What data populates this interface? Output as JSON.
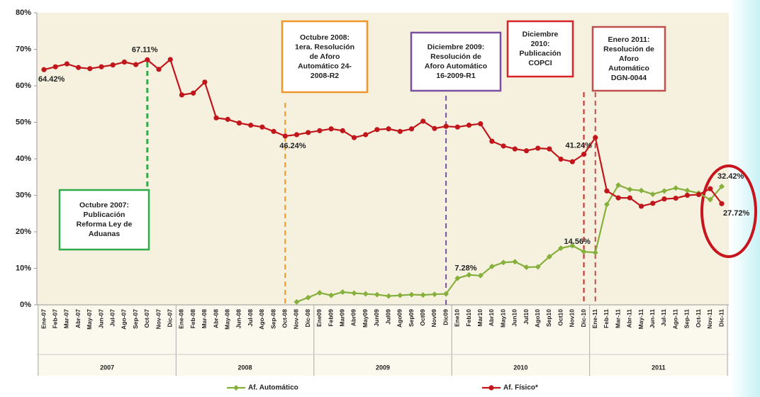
{
  "chart_data": {
    "type": "line",
    "categories": [
      "Ene-07",
      "Feb-07",
      "Mar-07",
      "Abr-07",
      "May-07",
      "Jun-07",
      "Jul-07",
      "Ago-07",
      "Sep-07",
      "Oct-07",
      "Nov-07",
      "Dic-07",
      "Ene-08",
      "Feb-08",
      "Mar-08",
      "Abr-08",
      "May-08",
      "Jun-08",
      "Jul-08",
      "Ago-08",
      "Sep-08",
      "Oct-08",
      "Nov-08",
      "Dic-08",
      "Ene09",
      "Feb09",
      "Mar09",
      "Abr09",
      "May09",
      "Jun09",
      "Jul09",
      "Ago09",
      "Sep09",
      "Oct09",
      "Nov09",
      "Dic09",
      "Ene10",
      "Feb10",
      "Mar10",
      "Abr10",
      "May10",
      "Jun10",
      "Jul10",
      "Ago10",
      "Sep10",
      "Oct10",
      "Nov10",
      "Dic-10",
      "Ene-11",
      "Feb-11",
      "Mar-11",
      "Abr-11",
      "May-11",
      "Jun-11",
      "Jul-11",
      "Ago-11",
      "Sep-11",
      "Oct-11",
      "Nov-11",
      "Dic-11"
    ],
    "groups": [
      "2007",
      "2008",
      "2009",
      "2010",
      "2011"
    ],
    "ylim": [
      0,
      80
    ],
    "yticks": [
      {
        "value": 0,
        "label": "0%"
      },
      {
        "value": 10,
        "label": "10%"
      },
      {
        "value": 20,
        "label": "20%"
      },
      {
        "value": 30,
        "label": "30%"
      },
      {
        "value": 40,
        "label": "40%"
      },
      {
        "value": 50,
        "label": "50%"
      },
      {
        "value": 60,
        "label": "60%"
      },
      {
        "value": 70,
        "label": "70%"
      },
      {
        "value": 80,
        "label": "80%"
      }
    ],
    "grid": false,
    "legend": "bottom",
    "series": [
      {
        "name": "Af. Automático",
        "color": "#86b03c",
        "values": [
          null,
          null,
          null,
          null,
          null,
          null,
          null,
          null,
          null,
          null,
          null,
          null,
          null,
          null,
          null,
          null,
          null,
          null,
          null,
          null,
          null,
          null,
          0.8,
          2.0,
          3.3,
          2.6,
          3.5,
          3.2,
          3.0,
          2.8,
          2.4,
          2.6,
          2.8,
          2.7,
          2.9,
          3.0,
          7.28,
          8.2,
          8.0,
          10.5,
          11.6,
          11.8,
          10.3,
          10.4,
          13.2,
          15.5,
          16.2,
          14.56,
          14.3,
          27.5,
          32.8,
          31.6,
          31.3,
          30.3,
          31.2,
          32.0,
          31.3,
          30.6,
          28.8,
          32.42
        ],
        "value_labels": [
          null,
          null,
          null,
          null,
          null,
          null,
          null,
          null,
          null,
          null,
          null,
          null,
          null,
          null,
          null,
          null,
          null,
          null,
          null,
          null,
          null,
          null,
          null,
          null,
          null,
          null,
          null,
          null,
          null,
          null,
          null,
          null,
          null,
          null,
          null,
          null,
          "7.28%",
          null,
          null,
          null,
          null,
          null,
          null,
          null,
          null,
          null,
          null,
          "14.56%",
          null,
          null,
          null,
          null,
          null,
          null,
          null,
          null,
          null,
          null,
          null,
          "32.42%"
        ]
      },
      {
        "name": "Af. Físico*",
        "color": "#c0161c",
        "values": [
          64.42,
          65.2,
          66.0,
          65.0,
          64.7,
          65.2,
          65.7,
          66.5,
          65.8,
          67.11,
          64.5,
          67.2,
          57.5,
          58.0,
          61.0,
          51.2,
          50.8,
          49.8,
          49.2,
          48.7,
          47.5,
          46.24,
          46.6,
          47.2,
          47.7,
          48.2,
          47.7,
          45.8,
          46.6,
          48.0,
          48.2,
          47.5,
          48.2,
          50.3,
          48.3,
          48.9,
          48.7,
          49.2,
          49.6,
          44.8,
          43.5,
          42.7,
          42.2,
          42.9,
          42.7,
          39.9,
          39.2,
          41.24,
          45.8,
          31.2,
          29.3,
          29.3,
          27.0,
          27.8,
          29.0,
          29.2,
          30.0,
          30.2,
          31.8,
          27.72
        ],
        "value_labels": [
          "64.42%",
          null,
          null,
          null,
          null,
          null,
          null,
          null,
          null,
          "67.11%",
          null,
          null,
          null,
          null,
          null,
          null,
          null,
          null,
          null,
          null,
          null,
          "46.24%",
          null,
          null,
          null,
          null,
          null,
          null,
          null,
          null,
          null,
          null,
          null,
          null,
          null,
          null,
          null,
          null,
          null,
          null,
          null,
          null,
          null,
          null,
          null,
          null,
          null,
          "41.24%",
          null,
          null,
          null,
          null,
          null,
          null,
          null,
          null,
          null,
          null,
          null,
          "27.72%"
        ]
      }
    ],
    "annotations": [
      {
        "category": "Oct-07",
        "color": "#2eaa4a",
        "lines": [
          "Octubre 2007:",
          "Publicación",
          "Reforma Ley de",
          "Aduanas"
        ]
      },
      {
        "category": "Oct-08",
        "color": "#f0962a",
        "lines": [
          "Octubre 2008:",
          "1era. Resolución",
          "de Aforo",
          "Automático 24-",
          "2008-R2"
        ]
      },
      {
        "category": "Dic09",
        "color": "#7a4fa0",
        "lines": [
          "Diciembre 2009:",
          "Resolución de",
          "Aforo Automático",
          "16-2009-R1"
        ]
      },
      {
        "category": "Dic-10",
        "color": "#d8232a",
        "lines": [
          "Diciembre",
          "2010:",
          "Publicación",
          "COPCI"
        ]
      },
      {
        "category": "Ene-11",
        "color": "#c0504d",
        "lines": [
          "Enero 2011:",
          "Resolución de",
          "Aforo",
          "Automático",
          "DGN-0044"
        ]
      }
    ]
  }
}
